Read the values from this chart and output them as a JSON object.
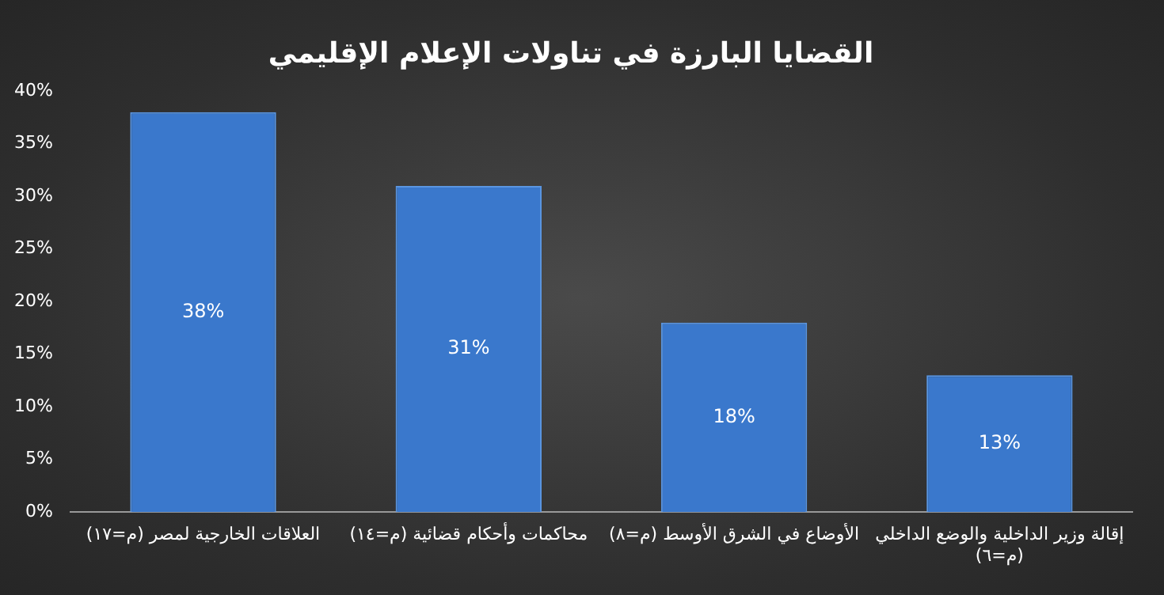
{
  "chart_data": {
    "type": "bar",
    "title": "القضايا البارزة في تناولات الإعلام الإقليمي",
    "categories": [
      "العلاقات الخارجية لمصر (م=١٧)",
      "محاكمات وأحكام قضائية (م=١٤)",
      "الأوضاع في الشرق الأوسط (م=٨)",
      "إقالة وزير الداخلية والوضع الداخلي (م=٦)"
    ],
    "values": [
      38,
      31,
      18,
      13
    ],
    "color": "#3a78cc",
    "value_labels": [
      "38%",
      "31%",
      "18%",
      "13%"
    ],
    "ylim": [
      0,
      40
    ],
    "yticks": [
      {
        "value": 0,
        "label": "0%"
      },
      {
        "value": 5,
        "label": "5%"
      },
      {
        "value": 10,
        "label": "10%"
      },
      {
        "value": 15,
        "label": "15%"
      },
      {
        "value": 20,
        "label": "20%"
      },
      {
        "value": 25,
        "label": "25%"
      },
      {
        "value": 30,
        "label": "30%"
      },
      {
        "value": 35,
        "label": "35%"
      },
      {
        "value": 40,
        "label": "40%"
      }
    ],
    "grid": false,
    "legend": false
  }
}
